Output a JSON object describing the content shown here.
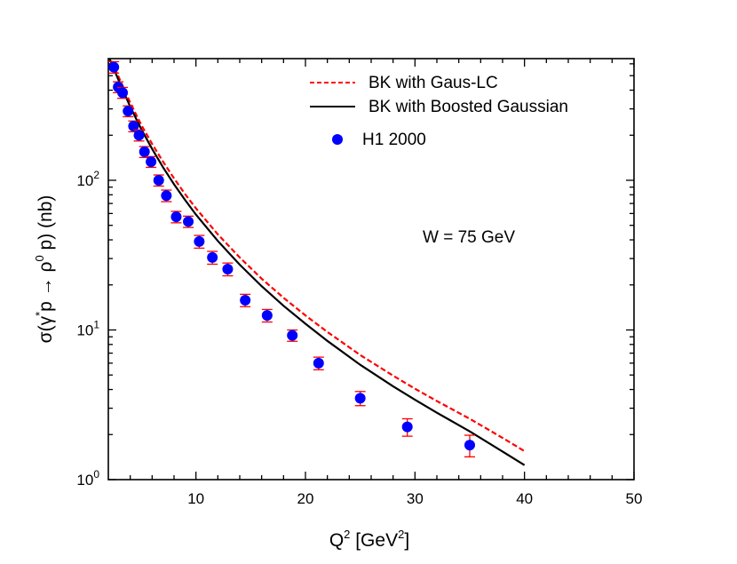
{
  "chart_data": {
    "type": "scatter",
    "xlabel": {
      "base": "Q",
      "sup": "2",
      "mid": " [GeV",
      "sup2": "2",
      "end": "]"
    },
    "ylabel": {
      "p1": "σ(γ",
      "sup1": "*",
      "p2": "p → ρ",
      "sup2": "0",
      "p3": " p) (nb)"
    },
    "xlim": [
      2,
      50
    ],
    "ylim": [
      1,
      650
    ],
    "yscale": "log",
    "x_ticks": [
      10,
      20,
      30,
      40,
      50
    ],
    "y_ticks": [
      {
        "value": 1,
        "base": "10",
        "exp": "0"
      },
      {
        "value": 10,
        "base": "10",
        "exp": "1"
      },
      {
        "value": 100,
        "base": "10",
        "exp": "2"
      }
    ],
    "annotation": "W = 75 GeV",
    "legend": [
      {
        "label": "BK with Gaus-LC",
        "style": "dashed",
        "color": "#ff0000"
      },
      {
        "label": "BK with Boosted Gaussian",
        "style": "solid",
        "color": "#000000"
      },
      {
        "label": "H1 2000",
        "style": "marker",
        "color": "#0000ff"
      }
    ],
    "series": [
      {
        "style": "dashed",
        "color": "#ff0000",
        "x": [
          2.0,
          2.5,
          3,
          4,
          5,
          6,
          7,
          8,
          9,
          10,
          12,
          14,
          16,
          18,
          20,
          22,
          25,
          28,
          30,
          32,
          35,
          38,
          40
        ],
        "y": [
          700,
          580,
          480,
          330,
          235,
          175,
          133,
          103,
          81,
          65,
          43.5,
          30.5,
          22,
          16.4,
          12.5,
          9.7,
          6.8,
          4.95,
          4.05,
          3.35,
          2.55,
          1.9,
          1.55
        ]
      },
      {
        "style": "solid",
        "color": "#000000",
        "x": [
          2.0,
          2.5,
          3,
          4,
          5,
          6,
          7,
          8,
          9,
          10,
          12,
          14,
          16,
          18,
          20,
          22,
          25,
          28,
          30,
          32,
          35,
          38,
          40
        ],
        "y": [
          680,
          555,
          455,
          310,
          220,
          162,
          122,
          94,
          74,
          59,
          39.3,
          27.3,
          19.6,
          14.5,
          11.0,
          8.45,
          5.85,
          4.2,
          3.42,
          2.8,
          2.1,
          1.54,
          1.25
        ]
      },
      {
        "style": "marker",
        "color": "#0000ff",
        "error_color": "#ff0000",
        "x": [
          2.5,
          2.9,
          3.3,
          3.8,
          4.3,
          4.8,
          5.3,
          5.9,
          6.6,
          7.3,
          8.2,
          9.3,
          10.3,
          11.5,
          12.9,
          14.5,
          16.5,
          18.8,
          21.2,
          25.0,
          29.3,
          35.0
        ],
        "y": [
          570,
          420,
          385,
          290,
          230,
          200,
          155,
          133,
          100,
          79,
          57,
          53,
          39,
          30.5,
          25.5,
          15.8,
          12.5,
          9.2,
          6.0,
          3.5,
          2.25,
          1.7
        ],
        "err": [
          50,
          35,
          32,
          24,
          19,
          17,
          13,
          11,
          8.5,
          7,
          5,
          4.6,
          3.8,
          3.0,
          2.5,
          1.5,
          1.2,
          0.8,
          0.58,
          0.38,
          0.3,
          0.28
        ]
      }
    ]
  }
}
